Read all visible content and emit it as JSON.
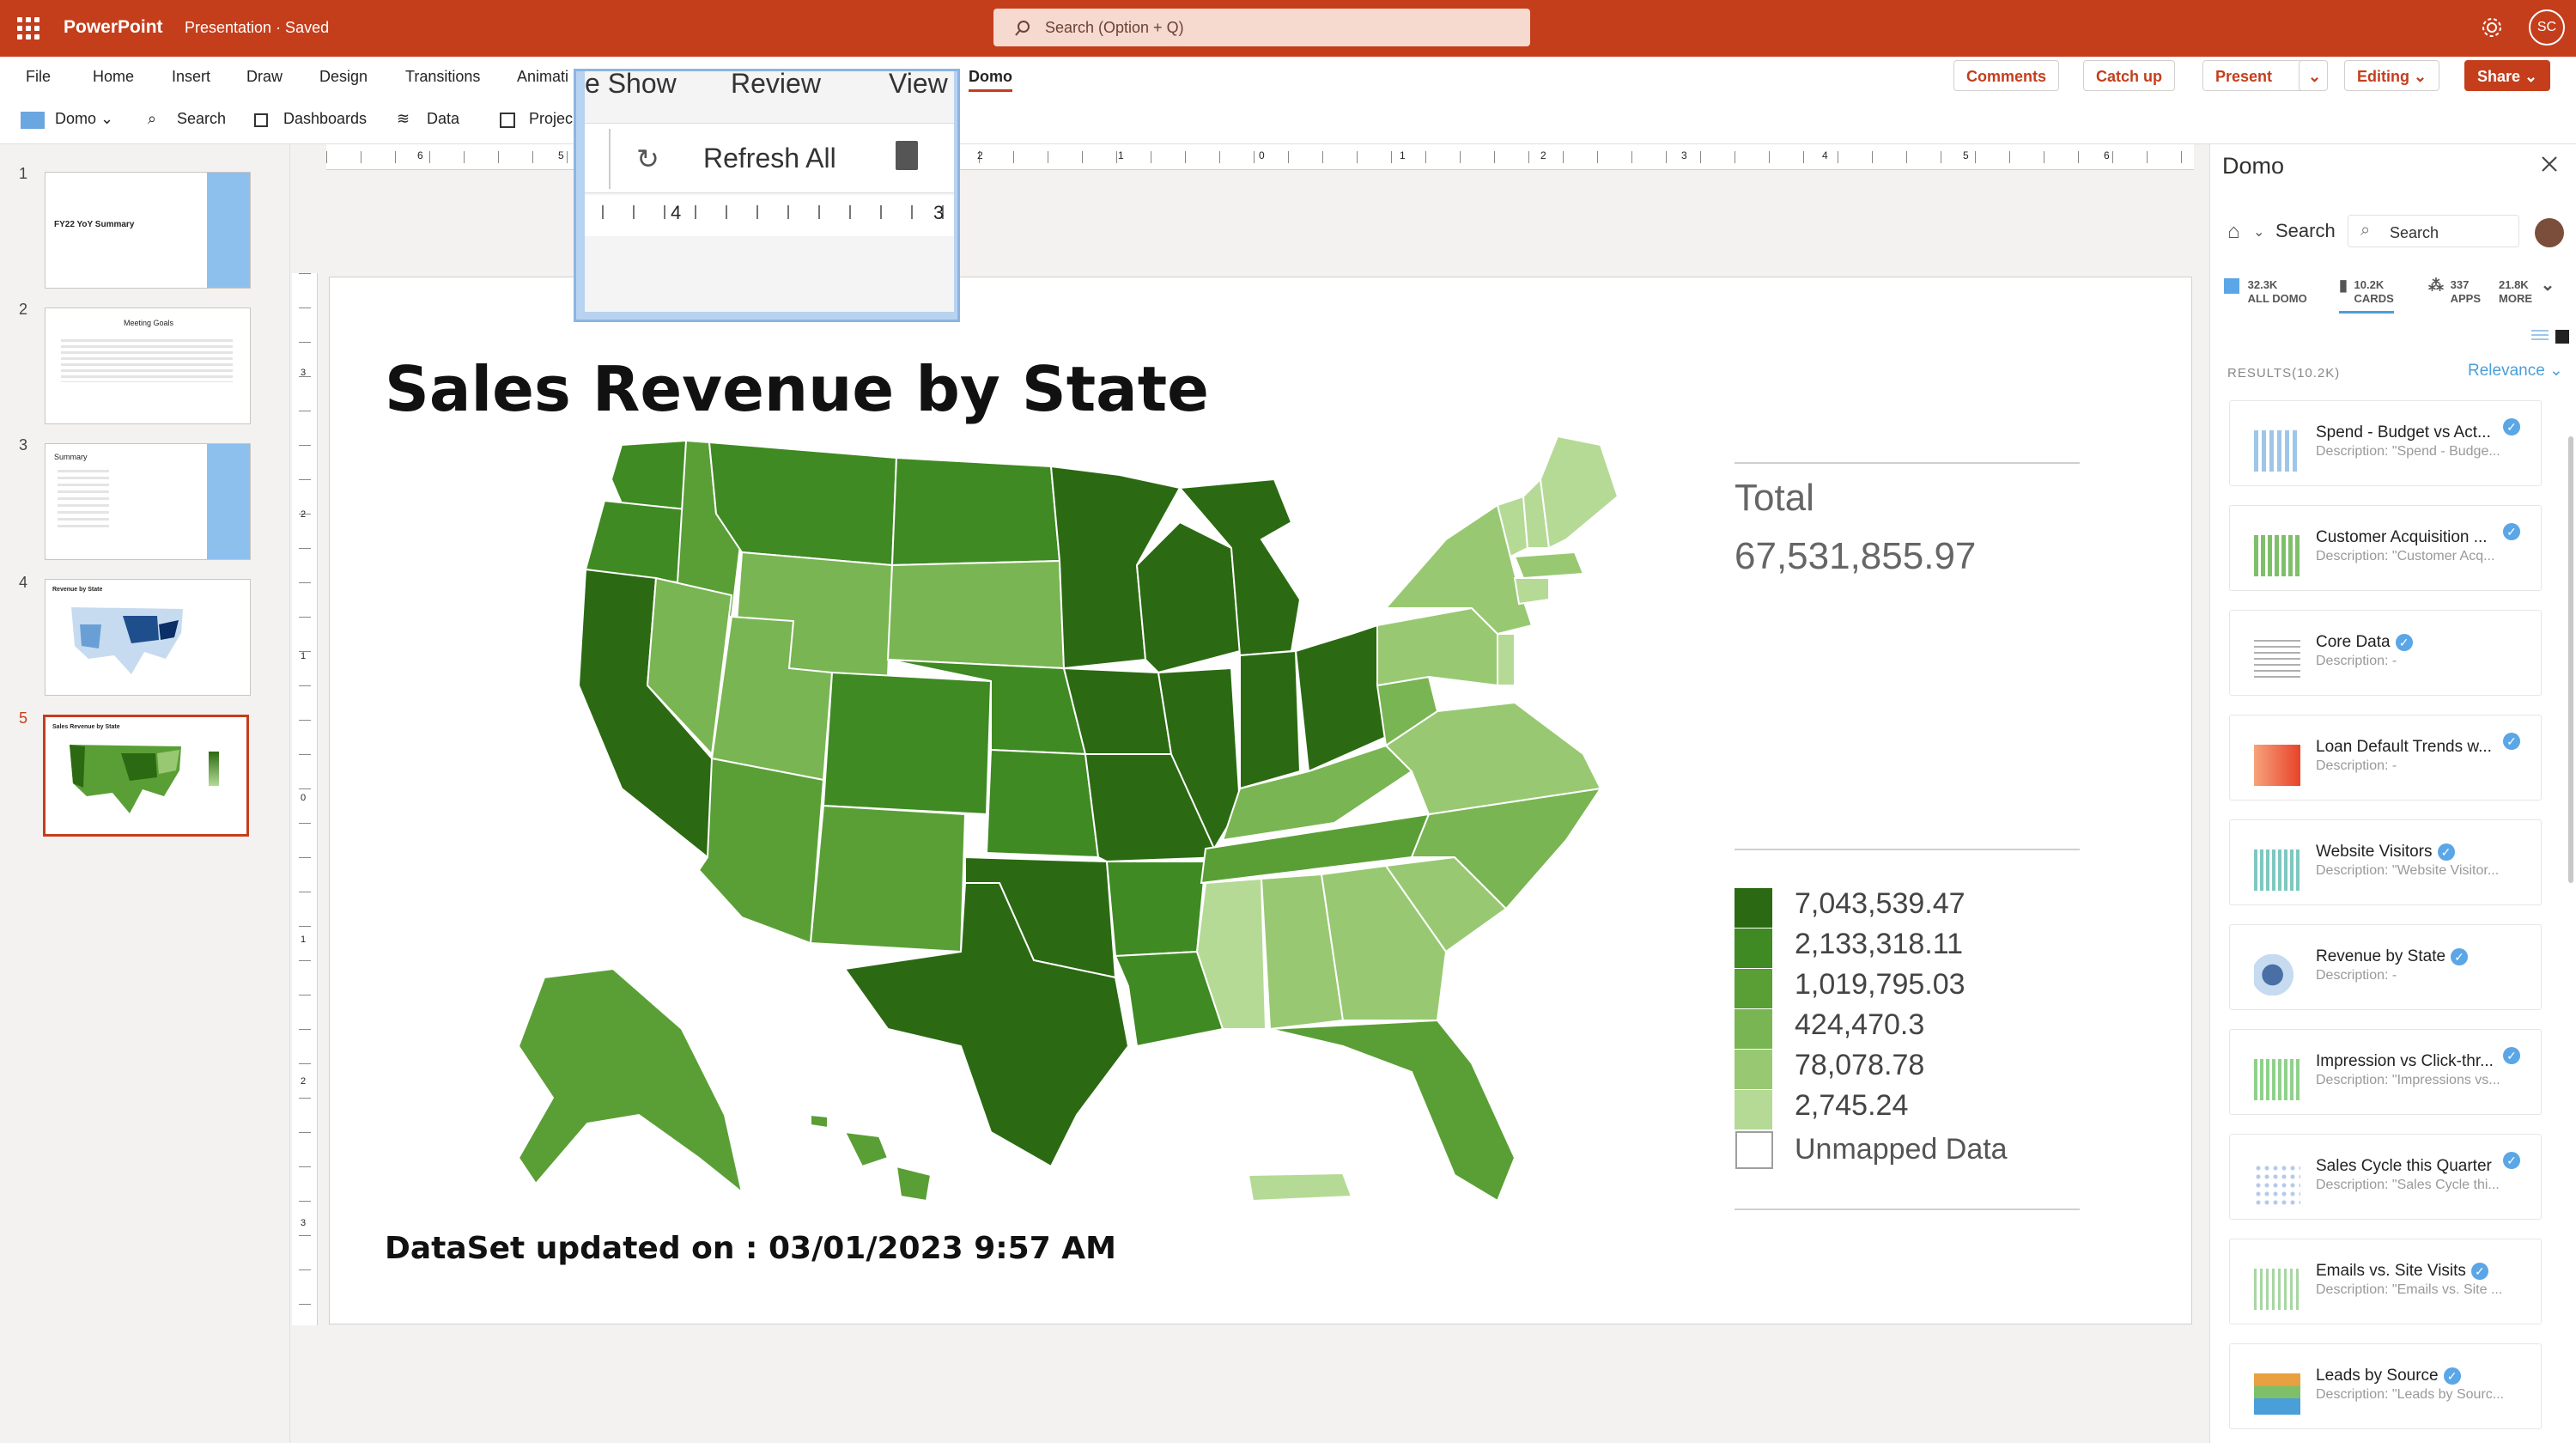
{
  "titlebar": {
    "app_name": "PowerPoint",
    "doc_title": "Presentation · Saved",
    "search_placeholder": "Search (Option + Q)",
    "user_initials": "SC"
  },
  "ribbon": {
    "tabs": [
      "File",
      "Home",
      "Insert",
      "Draw",
      "Design",
      "Transitions",
      "Animati",
      "Domo"
    ],
    "buttons": {
      "comments": "Comments",
      "catchup": "Catch up",
      "present": "Present",
      "editing": "Editing",
      "share": "Share"
    }
  },
  "command_bar": {
    "domo": "Domo",
    "search": "Search",
    "dashboards": "Dashboards",
    "data": "Data",
    "projects": "Projec"
  },
  "popup": {
    "tabs": [
      "e Show",
      "Review",
      "View"
    ],
    "refresh_label": "Refresh All",
    "ruler_labels": [
      "4",
      "3"
    ]
  },
  "thumbnails": {
    "numbers": [
      "1",
      "2",
      "3",
      "4",
      "5"
    ],
    "t1_title": "FY22 YoY Summary",
    "t2_title": "Meeting Goals",
    "t3_title": "Summary",
    "t4_title": "Revenue by State",
    "t5_title": "Sales Revenue by State"
  },
  "ruler": {
    "h_labels": [
      "6",
      "5",
      "2",
      "1",
      "0",
      "1",
      "2",
      "3",
      "4",
      "5",
      "6"
    ],
    "v_labels": [
      "3",
      "2",
      "1",
      "0",
      "1",
      "2",
      "3"
    ]
  },
  "slide": {
    "title": "Sales Revenue by State",
    "total_label": "Total",
    "total_value": "67,531,855.97",
    "legend": [
      {
        "label": "7,043,539.47",
        "color": "#2b6a12"
      },
      {
        "label": "2,133,318.11",
        "color": "#3f8a23"
      },
      {
        "label": "1,019,795.03",
        "color": "#5a9f36"
      },
      {
        "label": "424,470.3",
        "color": "#79b552"
      },
      {
        "label": "78,078.78",
        "color": "#98c972"
      },
      {
        "label": "2,745.24",
        "color": "#b5da96"
      }
    ],
    "unmapped_label": "Unmapped Data",
    "dataset_updated": "DataSet updated on : 03/01/2023 9:57 AM"
  },
  "domo_panel": {
    "title": "Domo",
    "search_label": "Search",
    "search_placeholder": "Search",
    "tabs": [
      {
        "count": "32.3K",
        "label": "ALL DOMO"
      },
      {
        "count": "10.2K",
        "label": "CARDS"
      },
      {
        "count": "337",
        "label": "APPS"
      },
      {
        "count": "21.8K",
        "label": "MORE"
      }
    ],
    "results_label": "RESULTS(10.2K)",
    "sort_label": "Relevance",
    "cards": [
      {
        "title": "Spend - Budget vs Act...",
        "desc": "Description: \"Spend - Budge...",
        "thumb": "#9ec6e8"
      },
      {
        "title": "Customer Acquisition ...",
        "desc": "Description: \"Customer Acq...",
        "thumb": "#7fbf6a"
      },
      {
        "title": "Core Data",
        "desc": "Description: -",
        "thumb": "#b0b0b0"
      },
      {
        "title": "Loan Default Trends w...",
        "desc": "Description: -",
        "thumb": "#f06a3a"
      },
      {
        "title": "Website Visitors",
        "desc": "Description: \"Website Visitor...",
        "thumb": "#7ec8c0"
      },
      {
        "title": "Revenue by State",
        "desc": "Description: -",
        "thumb": "#4a6fa5"
      },
      {
        "title": "Impression vs Click-thr...",
        "desc": "Description: \"Impressions vs...",
        "thumb": "#8fd18b"
      },
      {
        "title": "Sales Cycle this Quarter",
        "desc": "Description: \"Sales Cycle thi...",
        "thumb": "#b6c9e8"
      },
      {
        "title": "Emails vs. Site Visits",
        "desc": "Description: \"Emails vs. Site ...",
        "thumb": "#a7d6a2"
      },
      {
        "title": "Leads by Source",
        "desc": "Description: \"Leads by Sourc...",
        "thumb": "#e8a040"
      }
    ]
  }
}
